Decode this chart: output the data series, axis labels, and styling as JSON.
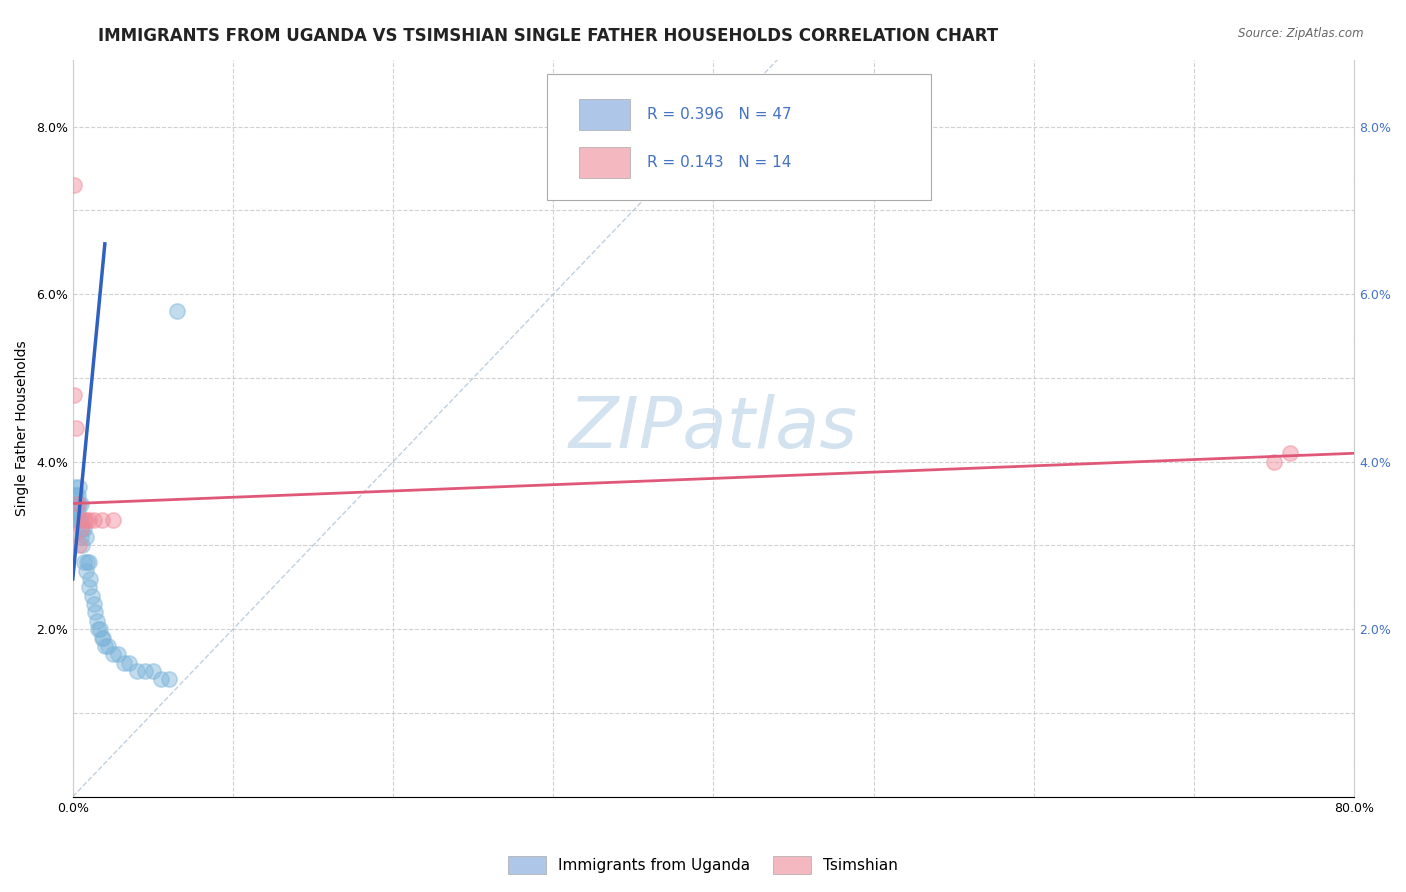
{
  "title": "IMMIGRANTS FROM UGANDA VS TSIMSHIAN SINGLE FATHER HOUSEHOLDS CORRELATION CHART",
  "source": "Source: ZipAtlas.com",
  "ylabel": "Single Father Households",
  "xlim": [
    0,
    0.8
  ],
  "ylim": [
    0,
    0.088
  ],
  "x_ticks": [
    0,
    0.1,
    0.2,
    0.3,
    0.4,
    0.5,
    0.6,
    0.7,
    0.8
  ],
  "y_ticks": [
    0,
    0.01,
    0.02,
    0.03,
    0.04,
    0.05,
    0.06,
    0.07,
    0.08
  ],
  "x_tick_labels": [
    "0.0%",
    "",
    "",
    "",
    "",
    "",
    "",
    "",
    "80.0%"
  ],
  "y_tick_labels_left": [
    "",
    "",
    "2.0%",
    "",
    "4.0%",
    "",
    "6.0%",
    "",
    "8.0%"
  ],
  "y_tick_labels_right_blue": [
    "",
    "",
    "2.0%",
    "",
    "4.0%",
    "",
    "6.0%",
    "",
    "8.0%"
  ],
  "blue_scatter_x": [
    0.0005,
    0.0008,
    0.001,
    0.0012,
    0.0015,
    0.002,
    0.002,
    0.0025,
    0.003,
    0.003,
    0.003,
    0.004,
    0.004,
    0.004,
    0.005,
    0.005,
    0.005,
    0.006,
    0.006,
    0.007,
    0.007,
    0.008,
    0.008,
    0.009,
    0.01,
    0.01,
    0.011,
    0.012,
    0.013,
    0.014,
    0.015,
    0.016,
    0.017,
    0.018,
    0.019,
    0.02,
    0.022,
    0.025,
    0.028,
    0.032,
    0.035,
    0.04,
    0.045,
    0.05,
    0.055,
    0.06,
    0.065
  ],
  "blue_scatter_y": [
    0.033,
    0.034,
    0.035,
    0.036,
    0.037,
    0.034,
    0.036,
    0.035,
    0.033,
    0.034,
    0.036,
    0.033,
    0.035,
    0.037,
    0.031,
    0.033,
    0.035,
    0.03,
    0.032,
    0.028,
    0.032,
    0.027,
    0.031,
    0.028,
    0.025,
    0.028,
    0.026,
    0.024,
    0.023,
    0.022,
    0.021,
    0.02,
    0.02,
    0.019,
    0.019,
    0.018,
    0.018,
    0.017,
    0.017,
    0.016,
    0.016,
    0.015,
    0.015,
    0.015,
    0.014,
    0.014,
    0.058
  ],
  "pink_scatter_x": [
    0.0005,
    0.001,
    0.002,
    0.003,
    0.004,
    0.005,
    0.007,
    0.008,
    0.01,
    0.013,
    0.018,
    0.025,
    0.75,
    0.76
  ],
  "pink_scatter_y": [
    0.073,
    0.048,
    0.044,
    0.035,
    0.03,
    0.032,
    0.033,
    0.033,
    0.033,
    0.033,
    0.033,
    0.033,
    0.04,
    0.041
  ],
  "blue_line_x": [
    0.0,
    0.02
  ],
  "blue_line_y": [
    0.026,
    0.066
  ],
  "pink_line_x": [
    0.0,
    0.8
  ],
  "pink_line_y": [
    0.035,
    0.041
  ],
  "diag_line_x": [
    0.0,
    0.44
  ],
  "diag_line_y": [
    0.0,
    0.088
  ],
  "watermark_text": "ZIPatlas",
  "watermark_color": "#ccdded",
  "background_color": "#ffffff",
  "grid_color": "#cccccc",
  "blue_scatter_color": "#7ab3d9",
  "pink_scatter_color": "#f08898",
  "blue_line_color": "#3060c0",
  "pink_line_color": "#e05878",
  "legend_blue_color": "#aec6e8",
  "legend_pink_color": "#f4b8c1",
  "legend_text_color": "#4472c4",
  "legend_R1": "0.396",
  "legend_N1": "47",
  "legend_R2": "0.143",
  "legend_N2": "14",
  "bottom_legend_labels": [
    "Immigrants from Uganda",
    "Tsimshian"
  ],
  "title_fontsize": 12,
  "axis_label_fontsize": 10,
  "tick_fontsize": 9,
  "right_tick_color": "#4472c4"
}
